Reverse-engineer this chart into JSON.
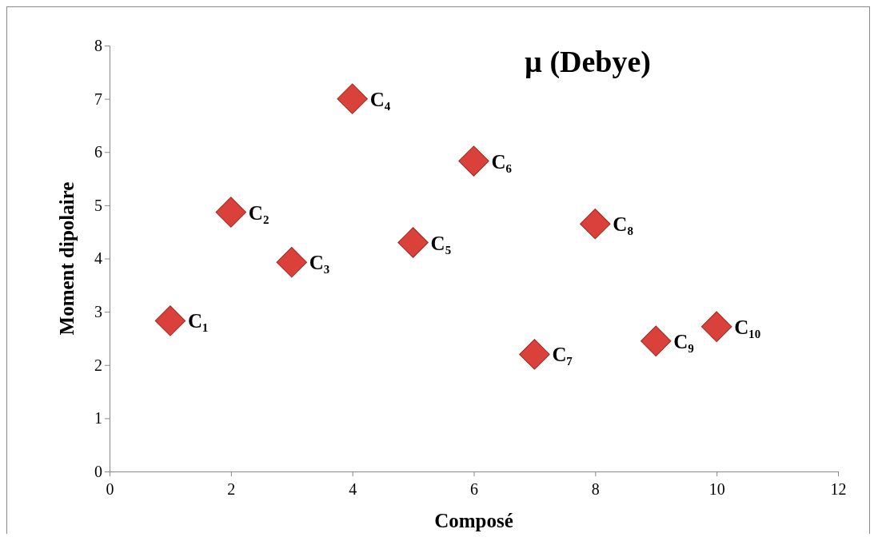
{
  "chart_data": {
    "type": "scatter",
    "title": "µ (Debye)",
    "xlabel": "Composé",
    "ylabel": "Moment dipolaire",
    "x": [
      1,
      2,
      3,
      4,
      5,
      6,
      7,
      8,
      9,
      10
    ],
    "values": [
      2.83,
      4.87,
      3.93,
      7.0,
      4.3,
      5.83,
      2.2,
      4.65,
      2.45,
      2.72
    ],
    "color": "#d9413a",
    "marker": "diamond",
    "xlim": [
      0,
      12
    ],
    "xticks": [
      0,
      2,
      4,
      6,
      8,
      10,
      12
    ],
    "ylim": [
      0,
      8
    ],
    "yticks": [
      0,
      1,
      2,
      3,
      4,
      5,
      6,
      7,
      8
    ],
    "annotations": [
      {
        "text": "C₁",
        "x": 1,
        "y": 2.83
      },
      {
        "text": "C₂",
        "x": 2,
        "y": 4.87
      },
      {
        "text": "C₃",
        "x": 3,
        "y": 3.93
      },
      {
        "text": "C₄",
        "x": 4,
        "y": 7.0
      },
      {
        "text": "C₅",
        "x": 5,
        "y": 4.3
      },
      {
        "text": "C₆",
        "x": 6,
        "y": 5.83
      },
      {
        "text": "C₇",
        "x": 7,
        "y": 2.2
      },
      {
        "text": "C₈",
        "x": 8,
        "y": 4.65
      },
      {
        "text": "C₉",
        "x": 9,
        "y": 2.45
      },
      {
        "text": "C₁₀",
        "x": 10,
        "y": 2.72
      }
    ]
  }
}
